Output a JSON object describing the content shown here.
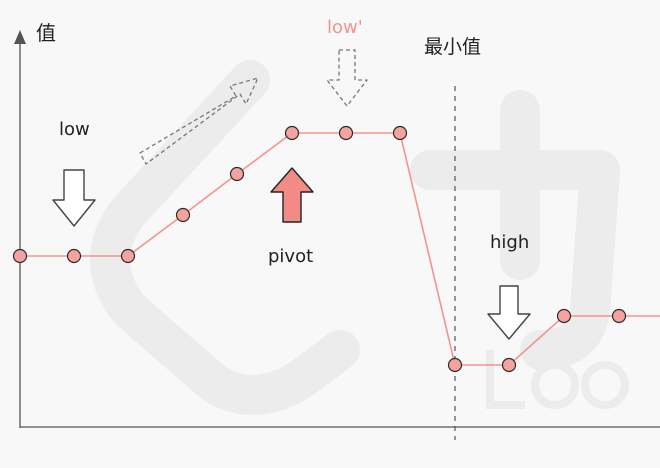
{
  "labels": {
    "y_axis": "值",
    "min_value": "最小值",
    "low": "low",
    "low_prime": "low'",
    "high": "high",
    "pivot": "pivot"
  },
  "colors": {
    "background": "#f8f8f8",
    "axis": "#555555",
    "line": "#f4928f",
    "point_fill": "#f6a3a0",
    "point_stroke": "#2b2b2b",
    "arrow_gray_fill": "#ffffff",
    "arrow_gray_stroke": "#444444",
    "arrow_dashed_stroke": "#777777",
    "pivot_arrow_fill": "#f28b86",
    "pivot_arrow_stroke": "#222222",
    "low_prime_text": "#f4928f",
    "text": "#222222",
    "watermark": "#e6e6e6"
  }
}
